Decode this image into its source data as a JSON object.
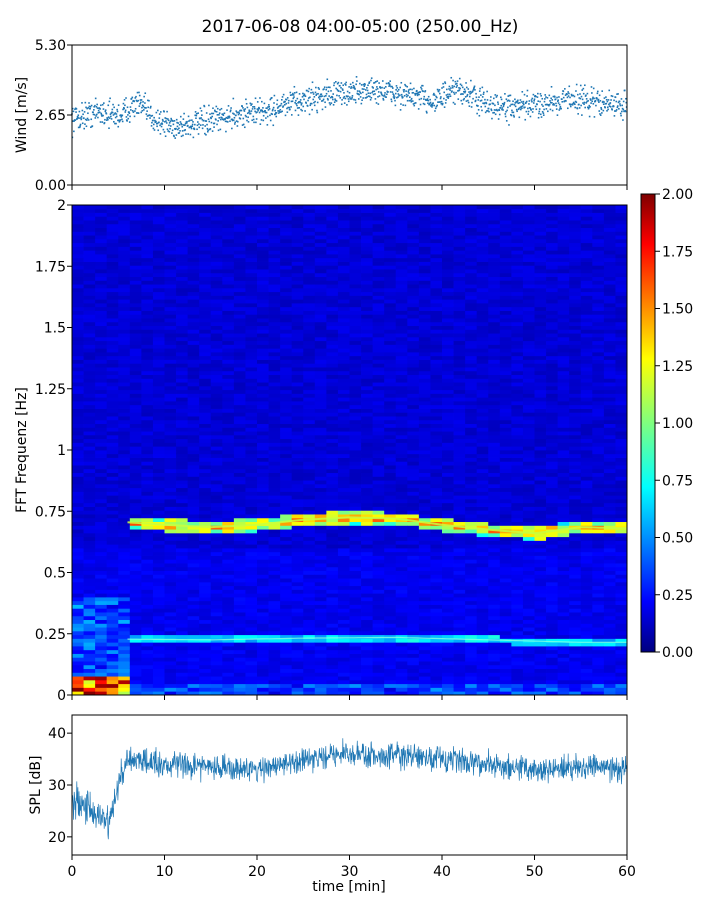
{
  "figure": {
    "title": "2017-06-08 04:00-05:00 (250.00_Hz)"
  },
  "chart_data": [
    {
      "type": "scatter",
      "panel": "wind",
      "ylabel": "Wind [m/s]",
      "xlim": [
        0,
        60
      ],
      "ylim": [
        0,
        5.3
      ],
      "yticks": [
        0.0,
        2.65,
        5.3
      ],
      "ytick_labels": [
        "0.00",
        "2.65",
        "5.30"
      ],
      "series_color": "#1f77b4",
      "trend": {
        "x": [
          0,
          3,
          5,
          7,
          9,
          11,
          13,
          15,
          18,
          21,
          24,
          27,
          30,
          33,
          36,
          39,
          42,
          45,
          48,
          51,
          54,
          57,
          60
        ],
        "y": [
          2.5,
          2.8,
          2.6,
          3.1,
          2.5,
          2.2,
          2.3,
          2.4,
          2.7,
          2.8,
          3.1,
          3.4,
          3.5,
          3.6,
          3.4,
          3.2,
          3.6,
          3.0,
          2.9,
          3.1,
          3.3,
          3.1,
          3.0
        ]
      }
    },
    {
      "type": "heatmap",
      "panel": "spectrogram",
      "ylabel": "FFT Frequenz [Hz]",
      "xlim": [
        0,
        60
      ],
      "ylim": [
        0,
        2
      ],
      "yticks": [
        0,
        0.25,
        0.5,
        0.75,
        1,
        1.25,
        1.5,
        1.75,
        2
      ],
      "ytick_labels": [
        "0",
        "0.25",
        "0.5",
        "0.75",
        "1",
        "1.25",
        "1.5",
        "1.75",
        "2"
      ],
      "ridges": [
        {
          "x": [
            6,
            10,
            15,
            20,
            25,
            30,
            35,
            40,
            45,
            50,
            55,
            60
          ],
          "y": [
            0.705,
            0.695,
            0.685,
            0.695,
            0.715,
            0.725,
            0.72,
            0.695,
            0.675,
            0.66,
            0.685,
            0.68
          ]
        },
        {
          "x": [
            6,
            15,
            25,
            35,
            45,
            55,
            60
          ],
          "y": [
            0.228,
            0.225,
            0.232,
            0.235,
            0.225,
            0.215,
            0.215
          ]
        }
      ],
      "colorbar": {
        "range": [
          0,
          2
        ],
        "ticks": [
          0,
          0.25,
          0.5,
          0.75,
          1,
          1.25,
          1.5,
          1.75,
          2
        ],
        "tick_labels": [
          "0.00",
          "0.25",
          "0.50",
          "0.75",
          "1.00",
          "1.25",
          "1.50",
          "1.75",
          "2.00"
        ],
        "colormap": "jet"
      }
    },
    {
      "type": "line",
      "panel": "spl",
      "ylabel": "SPL [dB]",
      "xlabel": "time [min]",
      "xlim": [
        0,
        60
      ],
      "ylim": [
        16.5,
        43.5
      ],
      "yticks": [
        20,
        30,
        40
      ],
      "ytick_labels": [
        "20",
        "30",
        "40"
      ],
      "xticks": [
        0,
        10,
        20,
        30,
        40,
        50,
        60
      ],
      "xtick_labels": [
        "0",
        "10",
        "20",
        "30",
        "40",
        "50",
        "60"
      ],
      "series_color": "#1f77b4",
      "envelope": {
        "x": [
          0,
          2,
          4,
          5,
          6,
          10,
          15,
          20,
          25,
          30,
          35,
          40,
          45,
          50,
          55,
          60
        ],
        "mean": [
          28,
          25,
          22,
          30,
          35,
          34,
          33.5,
          33,
          35,
          36,
          35.5,
          35,
          34,
          33,
          33.5,
          33
        ],
        "spread": [
          5,
          5,
          5,
          5,
          3.5,
          3.5,
          3.5,
          3.5,
          3.5,
          3.5,
          3.5,
          3.5,
          3.5,
          3.5,
          3.5,
          3.5
        ]
      }
    }
  ]
}
